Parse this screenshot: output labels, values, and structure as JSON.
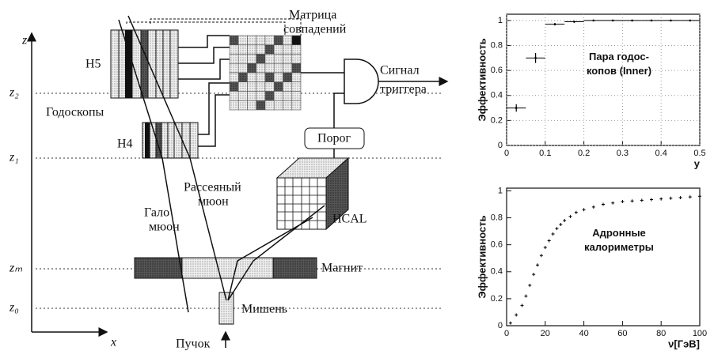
{
  "diagram": {
    "z_axis": "z",
    "x_axis": "x",
    "levels": [
      "z₂",
      "z₁",
      "zₘ",
      "z₀"
    ],
    "matrix": [
      "Матрица",
      "совпадений"
    ],
    "signal": [
      "Сигнал",
      "триггера"
    ],
    "threshold": "Порог",
    "h5": "H5",
    "h4": "H4",
    "hodoscopes": "Годоскопы",
    "scattered": [
      "Рассеяный",
      "мюон"
    ],
    "halo": [
      "Гало",
      "мюон"
    ],
    "hcal": "HCAL",
    "magnet": "Магнит",
    "target": "Мишень",
    "beam": "Пучок"
  },
  "chart_data": [
    {
      "type": "scatter",
      "ylabel": "Эффективность",
      "xlabel": "y",
      "annotation": [
        "Пара годос-",
        "копов (Inner)"
      ],
      "x": [
        0.025,
        0.075,
        0.125,
        0.175,
        0.225,
        0.275,
        0.325,
        0.375,
        0.425,
        0.475
      ],
      "values": [
        0.3,
        0.7,
        0.97,
        0.99,
        1,
        1,
        1,
        1,
        1,
        1
      ],
      "errors": [
        0.03,
        0.04,
        0.01,
        0.005,
        0.003,
        0.003,
        0.003,
        0.003,
        0.003,
        0.003
      ],
      "x_errors": [
        0.025,
        0.025,
        0.025,
        0.025,
        0.025,
        0.025,
        0.025,
        0.025,
        0.025,
        0.025
      ],
      "xlim": [
        0,
        0.5
      ],
      "xticks": [
        0,
        0.1,
        0.2,
        0.3,
        0.4,
        0.5
      ],
      "ylim": [
        0,
        1.05
      ],
      "yticks": [
        0,
        0.2,
        0.4,
        0.6,
        0.8,
        1
      ],
      "grid": true,
      "color": "#000000"
    },
    {
      "type": "scatter",
      "ylabel": "Эффективность",
      "xlabel": "ν[ГэВ]",
      "annotation": [
        "Адронные",
        "калориметры"
      ],
      "x": [
        2,
        5,
        8,
        10,
        12,
        14,
        16,
        18,
        20,
        22,
        24,
        26,
        28,
        30,
        33,
        36,
        40,
        45,
        50,
        55,
        60,
        65,
        70,
        75,
        80,
        85,
        90,
        95,
        100
      ],
      "values": [
        0.02,
        0.08,
        0.15,
        0.22,
        0.3,
        0.38,
        0.45,
        0.52,
        0.58,
        0.63,
        0.68,
        0.72,
        0.75,
        0.78,
        0.81,
        0.84,
        0.86,
        0.88,
        0.9,
        0.91,
        0.92,
        0.925,
        0.93,
        0.935,
        0.94,
        0.945,
        0.95,
        0.955,
        0.96
      ],
      "xlim": [
        0,
        100
      ],
      "xticks": [
        0,
        20,
        40,
        60,
        80,
        100
      ],
      "ylim": [
        0,
        1.02
      ],
      "yticks": [
        0,
        0.2,
        0.4,
        0.6,
        0.8,
        1
      ],
      "grid": false,
      "color": "#000000"
    }
  ]
}
